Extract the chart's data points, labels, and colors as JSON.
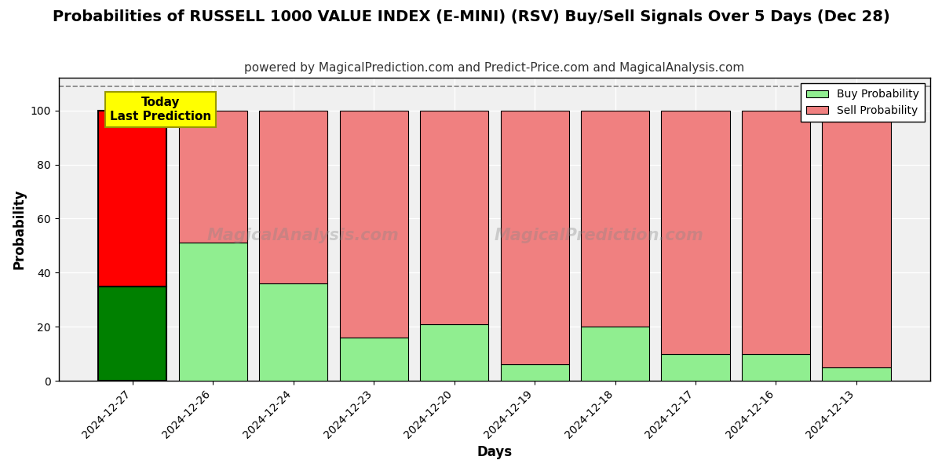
{
  "title": "Probabilities of RUSSELL 1000 VALUE INDEX (E-MINI) (RSV) Buy/Sell Signals Over 5 Days (Dec 28)",
  "subtitle": "powered by MagicalPrediction.com and Predict-Price.com and MagicalAnalysis.com",
  "xlabel": "Days",
  "ylabel": "Probability",
  "categories": [
    "2024-12-27",
    "2024-12-26",
    "2024-12-24",
    "2024-12-23",
    "2024-12-20",
    "2024-12-19",
    "2024-12-18",
    "2024-12-17",
    "2024-12-16",
    "2024-12-13"
  ],
  "buy_values": [
    35,
    51,
    36,
    16,
    21,
    6,
    20,
    10,
    10,
    5
  ],
  "sell_values": [
    65,
    49,
    64,
    84,
    79,
    94,
    80,
    90,
    90,
    95
  ],
  "today_bar_buy_color": "#008000",
  "today_bar_sell_color": "#ff0000",
  "other_bar_buy_color": "#90EE90",
  "other_bar_sell_color": "#F08080",
  "bar_edge_color": "#000000",
  "ylim_max": 112,
  "yticks": [
    0,
    20,
    40,
    60,
    80,
    100
  ],
  "dashed_line_y": 109,
  "legend_buy_label": "Buy Probability",
  "legend_sell_label": "Sell Probability",
  "today_label_line1": "Today",
  "today_label_line2": "Last Prediction",
  "today_box_color": "#ffff00",
  "background_color": "#ffffff",
  "plot_bg_color": "#f0f0f0",
  "title_fontsize": 14,
  "subtitle_fontsize": 11,
  "axis_label_fontsize": 12,
  "tick_fontsize": 10,
  "bar_width": 0.85
}
